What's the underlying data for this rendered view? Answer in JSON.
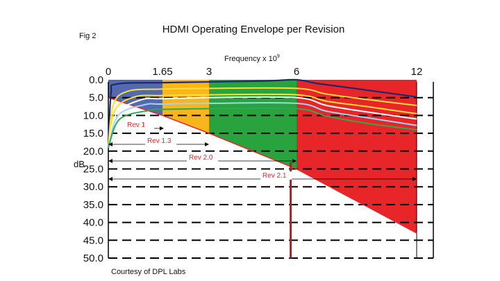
{
  "figure_label": "Fig 2",
  "title": "HDMI Operating Envelope per Revision",
  "xlabel": "Frequency x 10",
  "xlabel_exponent": "9",
  "ylabel": "dB",
  "credit": "Courtesy of DPL Labs",
  "chart_data": {
    "type": "area",
    "title": "HDMI Operating Envelope per Revision",
    "xlabel": "Frequency x 10^9",
    "ylabel": "dB",
    "x_ticks": [
      "0",
      "1.65",
      "3",
      "6",
      "12"
    ],
    "y_ticks": [
      "0.0",
      "5.0",
      "10.0",
      "15.0",
      "20.0",
      "25.0",
      "30.0",
      "35.0",
      "40.0",
      "45.0",
      "50.0"
    ],
    "ylim": [
      0,
      50
    ],
    "y_inverted": true,
    "grid": "horizontal dashed",
    "bands": [
      {
        "from": 0,
        "to": 1.65,
        "color": "#5469b0",
        "top_db": 0,
        "bottom_db": 10
      },
      {
        "from": 1.65,
        "to": 3,
        "color": "#f9b51c",
        "top_db": 0,
        "bottom_db": 15
      },
      {
        "from": 3,
        "to": 6,
        "color": "#29a33d",
        "top_db": 0,
        "bottom_db": 25
      },
      {
        "from": 6,
        "to": 12,
        "color": "#e8262a",
        "top_db": 0,
        "bottom_db": 43
      }
    ],
    "envelope_bottom": [
      [
        0,
        5
      ],
      [
        1.65,
        10
      ],
      [
        3,
        15
      ],
      [
        6,
        25
      ],
      [
        12,
        43
      ]
    ],
    "revisions": [
      {
        "name": "Rev 1",
        "max_freq": 1.65
      },
      {
        "name": "Rev 1.3",
        "max_freq": 3
      },
      {
        "name": "Rev 2.0",
        "max_freq": 6
      },
      {
        "name": "Rev 2.1",
        "max_freq": 12
      }
    ],
    "curves": [
      {
        "color": "#1b2a6b",
        "points": [
          [
            0,
            19
          ],
          [
            0.08,
            4
          ],
          [
            0.25,
            1.2
          ],
          [
            1.65,
            0.8
          ],
          [
            3,
            0.6
          ],
          [
            5,
            0.3
          ],
          [
            6,
            0
          ],
          [
            7,
            1
          ],
          [
            9,
            2.5
          ],
          [
            12,
            4.8
          ]
        ]
      },
      {
        "color": "#ffe033",
        "points": [
          [
            0,
            19
          ],
          [
            0.15,
            7
          ],
          [
            0.6,
            3.2
          ],
          [
            1.65,
            2.6
          ],
          [
            3,
            2.4
          ],
          [
            6,
            2.4
          ],
          [
            7.5,
            4
          ],
          [
            9.5,
            5.5
          ],
          [
            12,
            7.2
          ]
        ]
      },
      {
        "color": "#ffe033",
        "points": [
          [
            0,
            19
          ],
          [
            0.2,
            8.5
          ],
          [
            0.8,
            4.8
          ],
          [
            1.65,
            4.4
          ],
          [
            3,
            4.2
          ],
          [
            6,
            4.2
          ],
          [
            7.5,
            6
          ],
          [
            9.5,
            7.5
          ],
          [
            12,
            9.5
          ]
        ]
      },
      {
        "color": "#ffffff",
        "points": [
          [
            0,
            19
          ],
          [
            0.25,
            9.5
          ],
          [
            1,
            5.6
          ],
          [
            1.65,
            5.3
          ],
          [
            3,
            5
          ],
          [
            6,
            5
          ],
          [
            7.5,
            7.2
          ],
          [
            9.5,
            9
          ],
          [
            12,
            11
          ]
        ]
      },
      {
        "color": "#9fd6f5",
        "points": [
          [
            0,
            19
          ],
          [
            0.3,
            10
          ],
          [
            1.1,
            7
          ],
          [
            1.65,
            6.8
          ],
          [
            3,
            6.6
          ],
          [
            6,
            6.6
          ],
          [
            7.5,
            8.8
          ],
          [
            9.5,
            10.6
          ],
          [
            12,
            12.8
          ]
        ]
      },
      {
        "color": "#2fa84f",
        "points": [
          [
            0,
            19
          ],
          [
            0.35,
            11
          ],
          [
            1.3,
            8.5
          ],
          [
            1.65,
            8.3
          ],
          [
            3,
            8.1
          ],
          [
            6,
            8.1
          ],
          [
            7.5,
            10.2
          ],
          [
            9.5,
            12.2
          ],
          [
            12,
            14
          ]
        ]
      }
    ],
    "marker_line": {
      "x": 5.8,
      "color": "#b01e1e"
    }
  }
}
